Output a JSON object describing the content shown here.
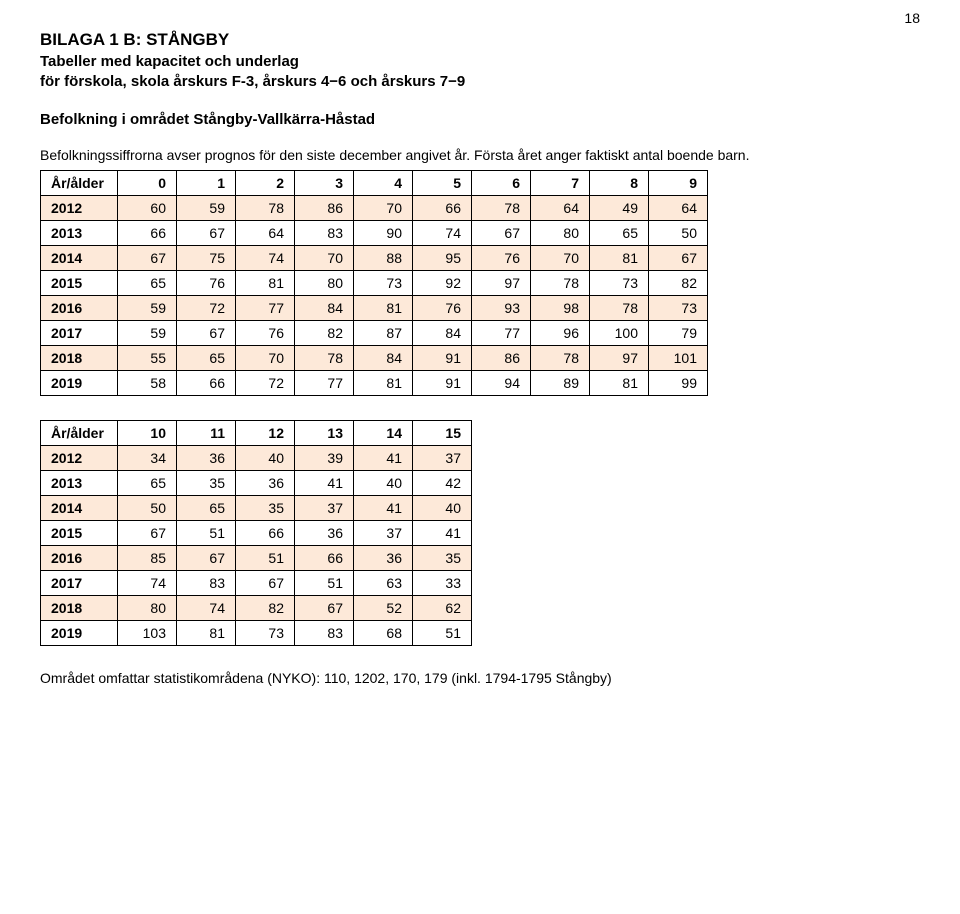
{
  "page_number": "18",
  "heading": "BILAGA 1 B: STÅNGBY",
  "subheading_line1": "Tabeller med kapacitet och underlag",
  "subheading_line2": "för förskola, skola årskurs F-3, årskurs 4−6 och årskurs 7−9",
  "section_title": "Befolkning i området Stångby-Vallkärra-Håstad",
  "note_line1": "Befolkningssiffrorna avser prognos för den siste december angivet år. Första året anger faktiskt antal boende barn.",
  "table1": {
    "header_label": "År/ålder",
    "columns": [
      "0",
      "1",
      "2",
      "3",
      "4",
      "5",
      "6",
      "7",
      "8",
      "9"
    ],
    "rows": [
      {
        "year": "2012",
        "cells": [
          "60",
          "59",
          "78",
          "86",
          "70",
          "66",
          "78",
          "64",
          "49",
          "64"
        ],
        "alt": true
      },
      {
        "year": "2013",
        "cells": [
          "66",
          "67",
          "64",
          "83",
          "90",
          "74",
          "67",
          "80",
          "65",
          "50"
        ],
        "alt": false
      },
      {
        "year": "2014",
        "cells": [
          "67",
          "75",
          "74",
          "70",
          "88",
          "95",
          "76",
          "70",
          "81",
          "67"
        ],
        "alt": true
      },
      {
        "year": "2015",
        "cells": [
          "65",
          "76",
          "81",
          "80",
          "73",
          "92",
          "97",
          "78",
          "73",
          "82"
        ],
        "alt": false
      },
      {
        "year": "2016",
        "cells": [
          "59",
          "72",
          "77",
          "84",
          "81",
          "76",
          "93",
          "98",
          "78",
          "73"
        ],
        "alt": true
      },
      {
        "year": "2017",
        "cells": [
          "59",
          "67",
          "76",
          "82",
          "87",
          "84",
          "77",
          "96",
          "100",
          "79"
        ],
        "alt": false
      },
      {
        "year": "2018",
        "cells": [
          "55",
          "65",
          "70",
          "78",
          "84",
          "91",
          "86",
          "78",
          "97",
          "101"
        ],
        "alt": true
      },
      {
        "year": "2019",
        "cells": [
          "58",
          "66",
          "72",
          "77",
          "81",
          "91",
          "94",
          "89",
          "81",
          "99"
        ],
        "alt": false
      }
    ]
  },
  "table2": {
    "header_label": "År/ålder",
    "columns": [
      "10",
      "11",
      "12",
      "13",
      "14",
      "15"
    ],
    "rows": [
      {
        "year": "2012",
        "cells": [
          "34",
          "36",
          "40",
          "39",
          "41",
          "37"
        ],
        "alt": true
      },
      {
        "year": "2013",
        "cells": [
          "65",
          "35",
          "36",
          "41",
          "40",
          "42"
        ],
        "alt": false
      },
      {
        "year": "2014",
        "cells": [
          "50",
          "65",
          "35",
          "37",
          "41",
          "40"
        ],
        "alt": true
      },
      {
        "year": "2015",
        "cells": [
          "67",
          "51",
          "66",
          "36",
          "37",
          "41"
        ],
        "alt": false
      },
      {
        "year": "2016",
        "cells": [
          "85",
          "67",
          "51",
          "66",
          "36",
          "35"
        ],
        "alt": true
      },
      {
        "year": "2017",
        "cells": [
          "74",
          "83",
          "67",
          "51",
          "63",
          "33"
        ],
        "alt": false
      },
      {
        "year": "2018",
        "cells": [
          "80",
          "74",
          "82",
          "67",
          "52",
          "62"
        ],
        "alt": true
      },
      {
        "year": "2019",
        "cells": [
          "103",
          "81",
          "73",
          "83",
          "68",
          "51"
        ],
        "alt": false
      }
    ]
  },
  "footer": "Området omfattar statistikområdena (NYKO): 110, 1202, 170, 179 (inkl. 1794-1795 Stångby)",
  "colors": {
    "alt_row_bg": "#fde9d9",
    "text": "#000000",
    "border": "#000000",
    "page_bg": "#ffffff"
  }
}
